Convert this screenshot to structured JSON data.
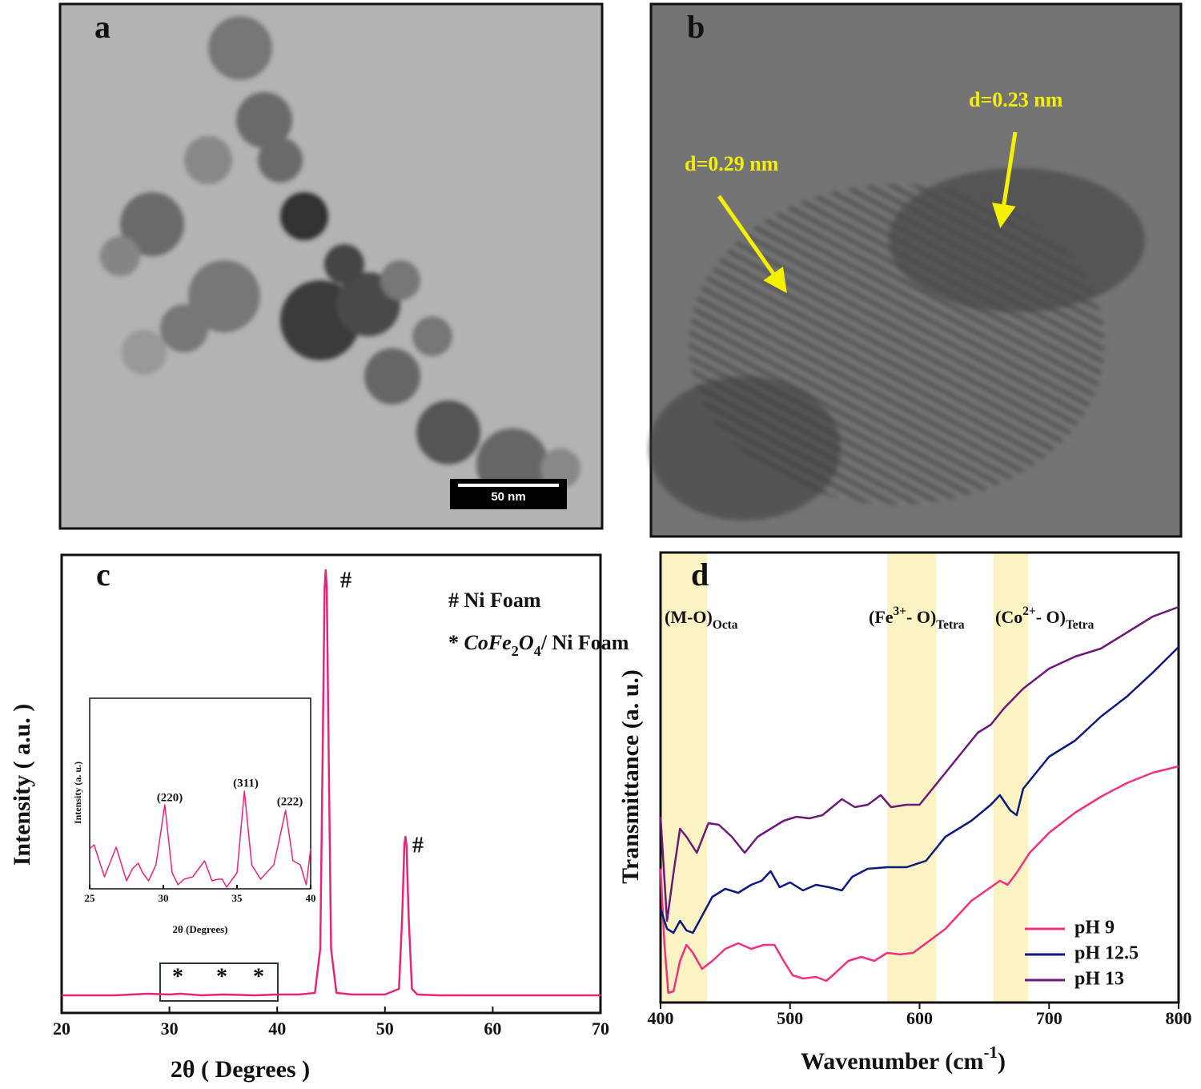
{
  "panels": {
    "a": {
      "label": "a",
      "scale_bar": "50 nm"
    },
    "b": {
      "label": "b",
      "annotations": [
        "d=0.29 nm",
        "d=0.23 nm"
      ]
    }
  },
  "chart_data": [
    {
      "type": "line",
      "label": "c",
      "xlabel": "2θ ( Degrees )",
      "ylabel": "Intensity ( a.u. )",
      "xlim": [
        20,
        70
      ],
      "xticks": [
        20,
        30,
        40,
        50,
        60,
        70
      ],
      "ylim": [
        0,
        572
      ],
      "color": "#e8247a",
      "x": [
        20,
        25,
        28,
        30,
        31,
        33,
        35,
        38,
        40,
        42,
        43.5,
        44.0,
        44.2,
        44.4,
        44.5,
        44.6,
        44.8,
        45.0,
        45.5,
        47,
        50,
        51.3,
        51.6,
        51.8,
        51.9,
        52.0,
        52.2,
        52.5,
        53,
        55,
        60,
        65,
        70
      ],
      "values": [
        22,
        22,
        24,
        23,
        24,
        22,
        23,
        22,
        23,
        23,
        25,
        80,
        300,
        530,
        553,
        530,
        300,
        80,
        25,
        23,
        23,
        30,
        120,
        210,
        220,
        210,
        120,
        30,
        23,
        22,
        22,
        22,
        22
      ],
      "annotations": [
        "#",
        "#",
        "*",
        "*",
        "*"
      ],
      "legend_text": [
        [
          {
            "text": "# Ni Foam"
          }
        ],
        [
          {
            "text": "* "
          },
          {
            "text": "CoFe",
            "style": "italic"
          },
          {
            "text": "2",
            "shift": "sub"
          },
          {
            "text": "O",
            "style": "italic"
          },
          {
            "text": "4",
            "shift": "sub"
          },
          {
            "text": "/ Ni Foam"
          }
        ]
      ]
    },
    {
      "type": "line",
      "xlabel": "2θ (Degrees)",
      "ylabel": "Intensity (a. u.)",
      "xlim": [
        25,
        40
      ],
      "xticks": [
        25,
        30,
        35,
        40
      ],
      "ylim": [
        0,
        238
      ],
      "color": "#e8247a",
      "x": [
        25,
        25.3,
        26,
        26.8,
        27.5,
        27.9,
        28.3,
        28.6,
        29,
        29.5,
        30.1,
        30.6,
        31,
        31.4,
        32,
        32.8,
        33.3,
        33.7,
        34,
        34.3,
        34.6,
        35,
        35.5,
        36,
        36.6,
        37,
        37.5,
        38.3,
        38.8,
        39.3,
        39.7,
        40
      ],
      "values": [
        50,
        55,
        15,
        52,
        10,
        25,
        32,
        20,
        10,
        30,
        105,
        20,
        5,
        12,
        15,
        35,
        10,
        12,
        12,
        2,
        10,
        20,
        122,
        30,
        12,
        20,
        30,
        98,
        35,
        30,
        5,
        50
      ],
      "annotations": [
        "(220)",
        "(311)",
        "(222)"
      ]
    },
    {
      "type": "line",
      "label": "d",
      "xlabel": [
        {
          "text": "Wavenumber (cm"
        },
        {
          "text": "-1",
          "shift": "sup"
        },
        {
          "text": ")"
        }
      ],
      "ylabel": "Transmittance (a. u.)",
      "xlim": [
        400,
        800
      ],
      "xticks": [
        400,
        500,
        600,
        700,
        800
      ],
      "ylim": [
        0,
        562
      ],
      "band_color": "#fbf3c4",
      "bands": [
        {
          "range": [
            400,
            436
          ],
          "label": [
            {
              "text": "(M-O)"
            },
            {
              "text": "Octa",
              "shift": "sub"
            }
          ]
        },
        {
          "range": [
            575,
            613
          ],
          "label": [
            {
              "text": "(Fe"
            },
            {
              "text": "3+",
              "shift": "sup"
            },
            {
              "text": "- O)"
            },
            {
              "text": "Tetra",
              "shift": "sub"
            }
          ]
        },
        {
          "range": [
            657,
            684
          ],
          "label": [
            {
              "text": "(Co"
            },
            {
              "text": "2+",
              "shift": "sup"
            },
            {
              "text": "- O)"
            },
            {
              "text": "Tetra",
              "shift": "sub"
            }
          ]
        }
      ],
      "legend": "lower right",
      "series": [
        {
          "name": "pH 9",
          "color": "#f0317f",
          "x": [
            400,
            403,
            406,
            410,
            415,
            420,
            425,
            432,
            440,
            450,
            460,
            470,
            480,
            488,
            495,
            502,
            510,
            520,
            528,
            535,
            545,
            555,
            565,
            575,
            585,
            595,
            605,
            620,
            640,
            655,
            662,
            668,
            675,
            685,
            700,
            720,
            740,
            760,
            780,
            800
          ],
          "values": [
            167,
            72,
            12,
            14,
            52,
            72,
            62,
            42,
            52,
            67,
            74,
            67,
            72,
            72,
            52,
            34,
            30,
            32,
            27,
            37,
            52,
            57,
            52,
            62,
            60,
            62,
            74,
            92,
            127,
            144,
            152,
            147,
            162,
            187,
            212,
            237,
            257,
            274,
            287,
            295
          ]
        },
        {
          "name": "pH  12.5",
          "color": "#0d1a7a",
          "x": [
            400,
            405,
            410,
            415,
            420,
            425,
            430,
            440,
            450,
            460,
            470,
            478,
            485,
            492,
            500,
            510,
            520,
            530,
            540,
            548,
            560,
            575,
            590,
            605,
            620,
            640,
            655,
            662,
            670,
            675,
            680,
            690,
            700,
            720,
            740,
            760,
            780,
            800
          ],
          "values": [
            117,
            92,
            87,
            102,
            90,
            87,
            102,
            132,
            142,
            137,
            147,
            152,
            164,
            144,
            150,
            140,
            147,
            144,
            140,
            157,
            167,
            169,
            169,
            177,
            207,
            227,
            247,
            259,
            240,
            234,
            267,
            287,
            307,
            327,
            357,
            382,
            412,
            444
          ]
        },
        {
          "name": "pH  13",
          "color": "#6b1a78",
          "x": [
            400,
            405,
            410,
            415,
            420,
            428,
            437,
            445,
            455,
            465,
            475,
            485,
            495,
            505,
            515,
            525,
            540,
            550,
            560,
            570,
            578,
            590,
            600,
            615,
            630,
            645,
            655,
            665,
            680,
            700,
            720,
            740,
            760,
            780,
            800
          ],
          "values": [
            232,
            102,
            162,
            217,
            207,
            187,
            224,
            222,
            207,
            187,
            207,
            217,
            227,
            232,
            230,
            234,
            254,
            244,
            247,
            259,
            244,
            247,
            247,
            277,
            307,
            337,
            347,
            367,
            392,
            417,
            432,
            442,
            462,
            482,
            494
          ]
        }
      ]
    }
  ]
}
